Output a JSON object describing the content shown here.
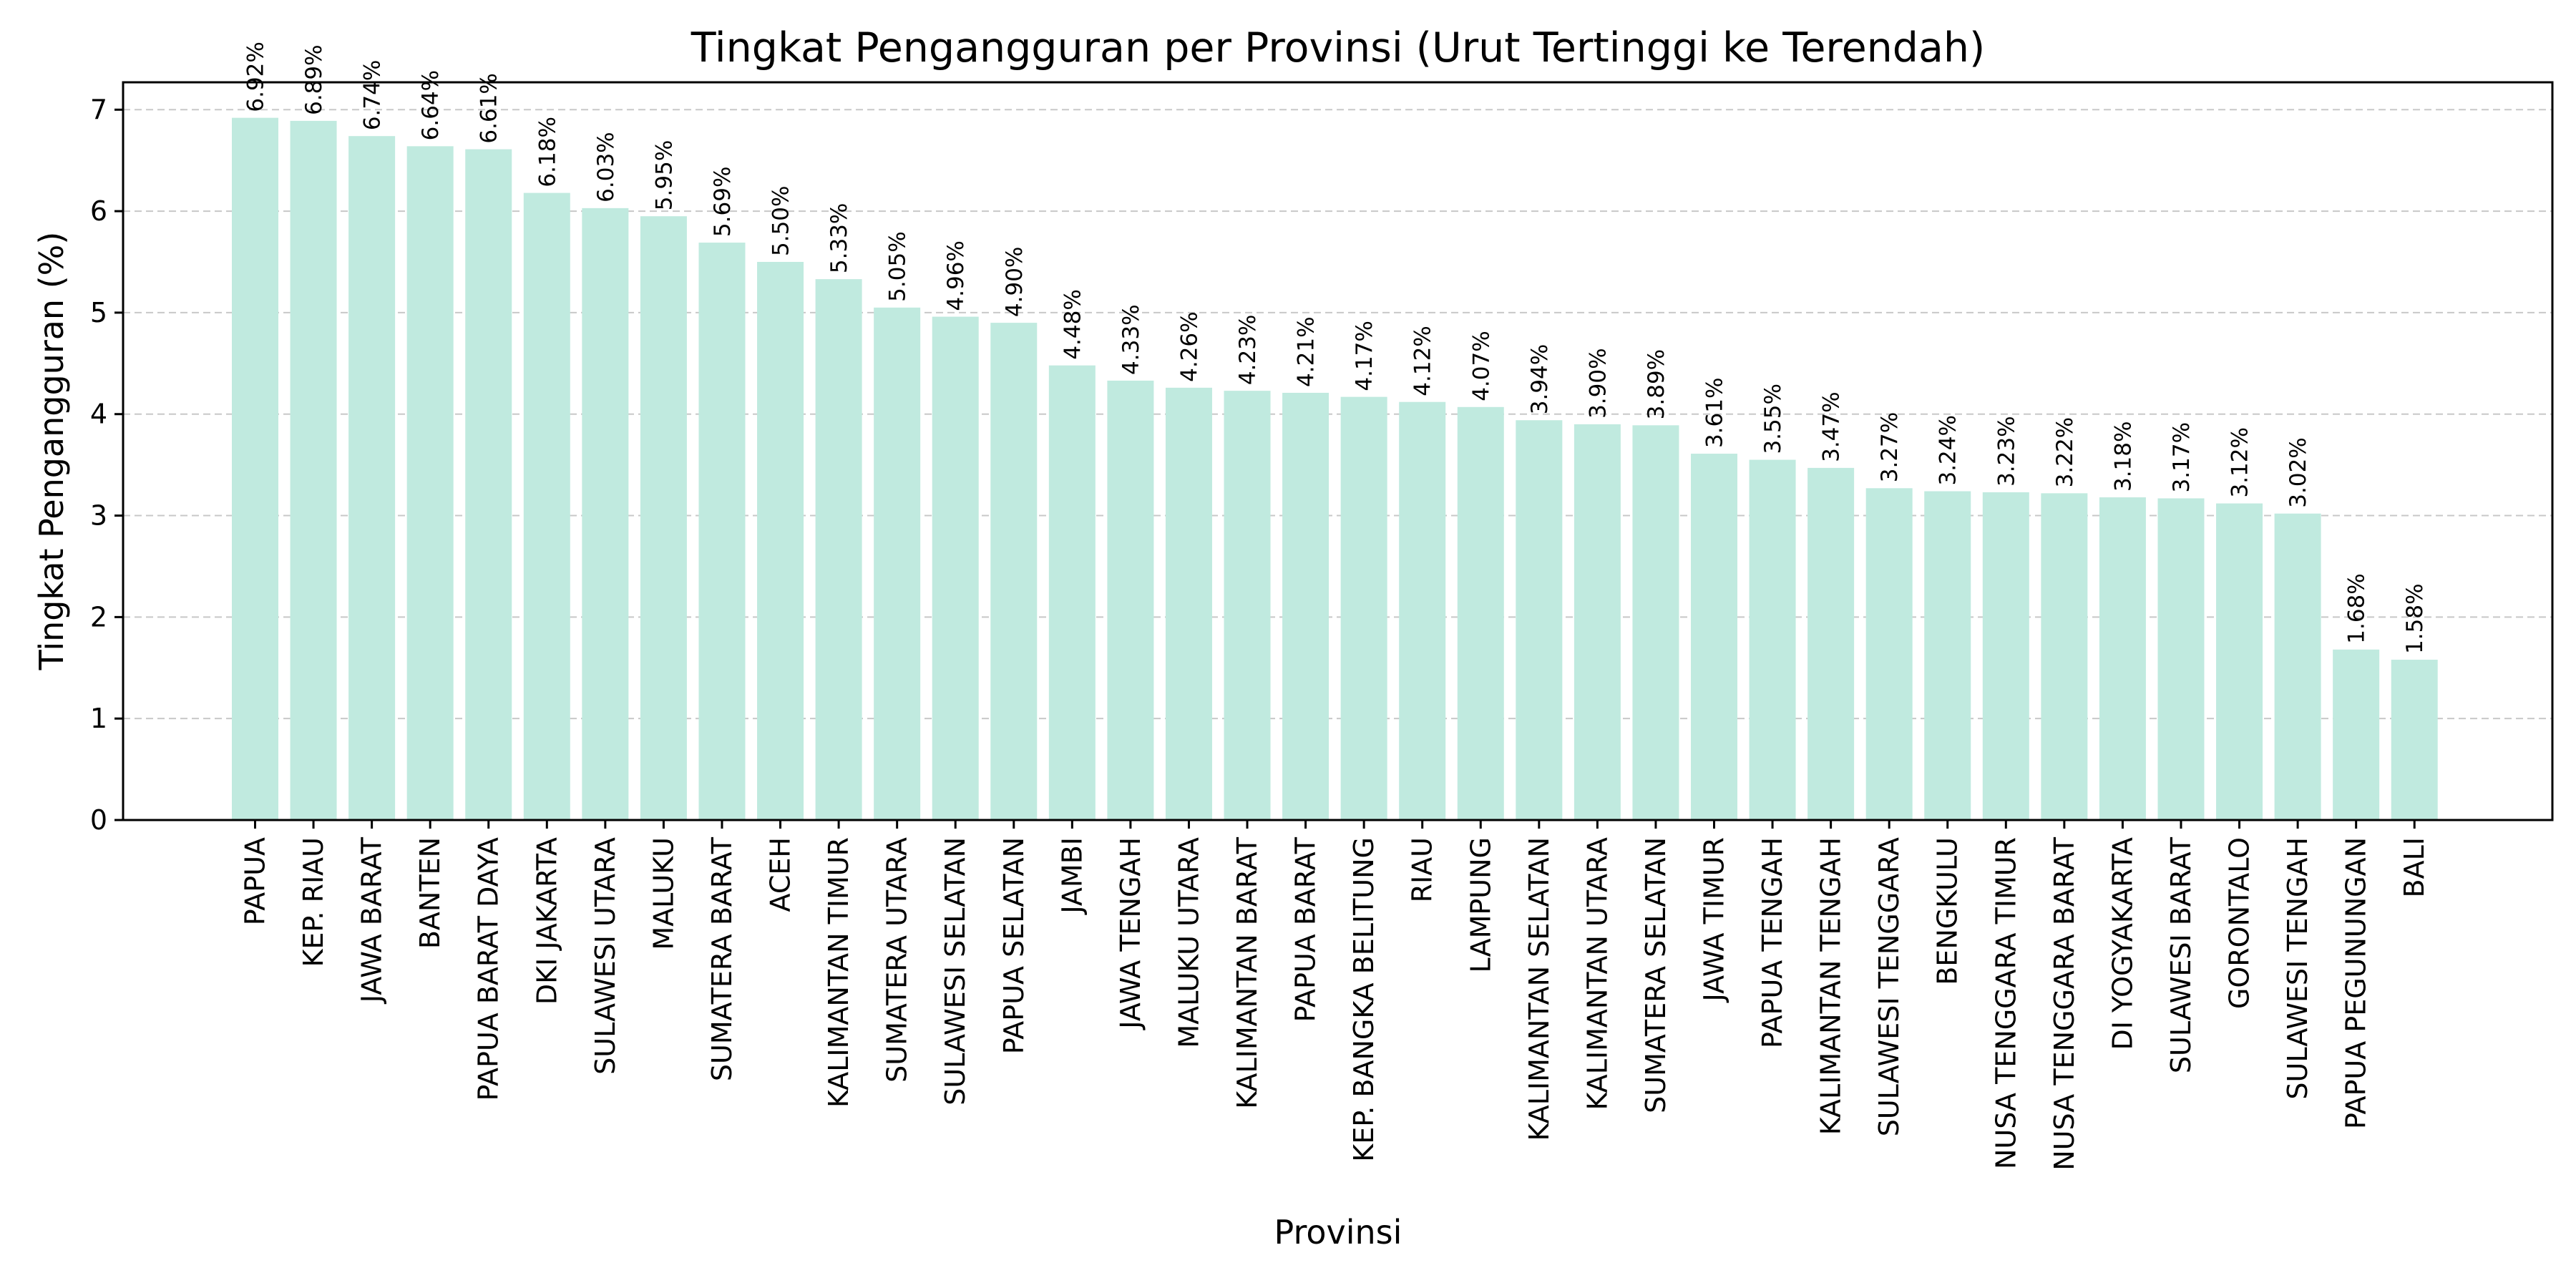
{
  "chart_data": {
    "type": "bar",
    "title": "Tingkat Pengangguran per Provinsi (Urut Tertinggi ke Terendah)",
    "xlabel": "Provinsi",
    "ylabel": "Tingkat Pengangguran (%)",
    "ylim": [
      0,
      7.27
    ],
    "yticks": [
      0,
      1,
      2,
      3,
      4,
      5,
      6,
      7
    ],
    "grid": "y-dashed",
    "bar_color": "#c0eadf",
    "value_suffix": "%",
    "categories": [
      "PAPUA",
      "KEP. RIAU",
      "JAWA BARAT",
      "BANTEN",
      "PAPUA BARAT DAYA",
      "DKI JAKARTA",
      "SULAWESI UTARA",
      "MALUKU",
      "SUMATERA BARAT",
      "ACEH",
      "KALIMANTAN TIMUR",
      "SUMATERA UTARA",
      "SULAWESI SELATAN",
      "PAPUA SELATAN",
      "JAMBI",
      "JAWA TENGAH",
      "MALUKU UTARA",
      "KALIMANTAN BARAT",
      "PAPUA BARAT",
      "KEP. BANGKA BELITUNG",
      "RIAU",
      "LAMPUNG",
      "KALIMANTAN SELATAN",
      "KALIMANTAN UTARA",
      "SUMATERA SELATAN",
      "JAWA TIMUR",
      "PAPUA TENGAH",
      "KALIMANTAN TENGAH",
      "SULAWESI TENGGARA",
      "BENGKULU",
      "NUSA TENGGARA TIMUR",
      "NUSA TENGGARA BARAT",
      "DI YOGYAKARTA",
      "SULAWESI BARAT",
      "GORONTALO",
      "SULAWESI TENGAH",
      "PAPUA PEGUNUNGAN",
      "BALI"
    ],
    "values": [
      6.92,
      6.89,
      6.74,
      6.64,
      6.61,
      6.18,
      6.03,
      5.95,
      5.69,
      5.5,
      5.33,
      5.05,
      4.96,
      4.9,
      4.48,
      4.33,
      4.26,
      4.23,
      4.21,
      4.17,
      4.12,
      4.07,
      3.94,
      3.9,
      3.89,
      3.61,
      3.55,
      3.47,
      3.27,
      3.24,
      3.23,
      3.22,
      3.18,
      3.17,
      3.12,
      3.02,
      1.68,
      1.58
    ]
  }
}
